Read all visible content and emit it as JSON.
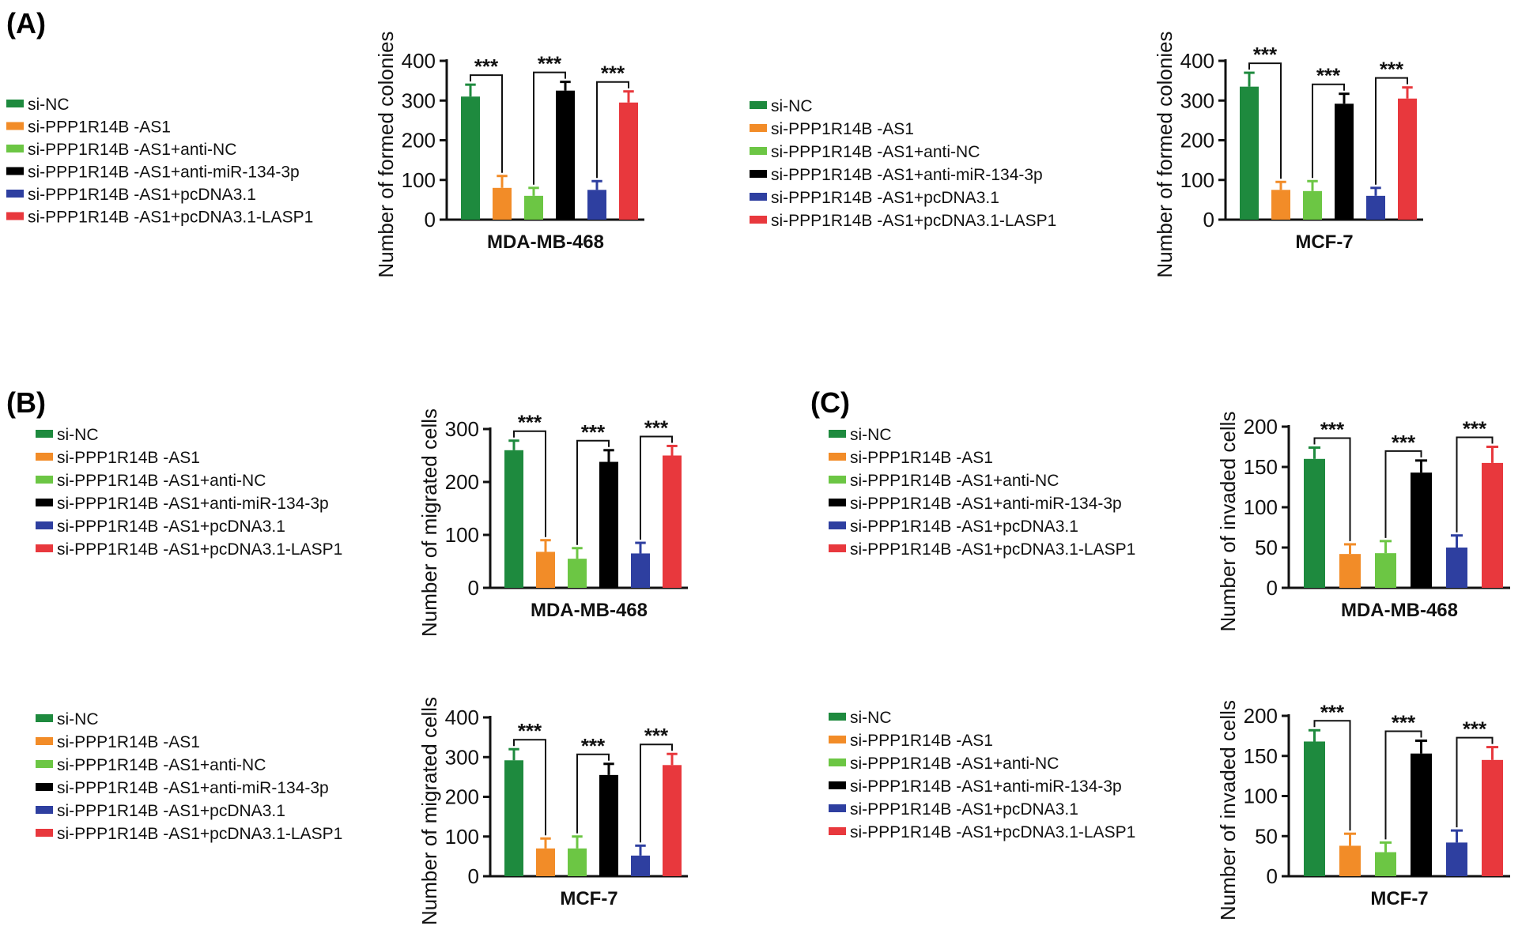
{
  "panel_labels": [
    "(A)",
    "(B)",
    "(C)"
  ],
  "groups": [
    {
      "label": "si-NC",
      "color": "#1e8a3e"
    },
    {
      "label": "si-PPP1R14B -AS1",
      "color": "#f28c28"
    },
    {
      "label": "si-PPP1R14B -AS1+anti-NC",
      "color": "#6cc644"
    },
    {
      "label": "si-PPP1R14B -AS1+anti-miR-134-3p",
      "color": "#000000"
    },
    {
      "label": "si-PPP1R14B -AS1+pcDNA3.1",
      "color": "#2e3fa0"
    },
    {
      "label": "si-PPP1R14B -AS1+pcDNA3.1-LASP1",
      "color": "#e8383d"
    }
  ],
  "chart_data": [
    {
      "type": "bar",
      "panel": "A",
      "xlabel": "MDA-MB-468",
      "ylabel": "Number of formed colonies",
      "ylim": [
        0,
        400
      ],
      "yticks": [
        0,
        100,
        200,
        300,
        400
      ],
      "significance": "***",
      "categories": [
        "si-NC",
        "si-PPP1R14B -AS1",
        "si-PPP1R14B -AS1+anti-NC",
        "si-PPP1R14B -AS1+anti-miR-134-3p",
        "si-PPP1R14B -AS1+pcDNA3.1",
        "si-PPP1R14B -AS1+pcDNA3.1-LASP1"
      ],
      "values": [
        310,
        80,
        60,
        325,
        75,
        295
      ],
      "errors": [
        30,
        30,
        20,
        22,
        22,
        28
      ]
    },
    {
      "type": "bar",
      "panel": "A",
      "xlabel": "MCF-7",
      "ylabel": "Number of formed colonies",
      "ylim": [
        0,
        400
      ],
      "yticks": [
        0,
        100,
        200,
        300,
        400
      ],
      "significance": "***",
      "categories": [
        "si-NC",
        "si-PPP1R14B -AS1",
        "si-PPP1R14B -AS1+anti-NC",
        "si-PPP1R14B -AS1+anti-miR-134-3p",
        "si-PPP1R14B -AS1+pcDNA3.1",
        "si-PPP1R14B -AS1+pcDNA3.1-LASP1"
      ],
      "values": [
        335,
        75,
        72,
        292,
        60,
        305
      ],
      "errors": [
        35,
        20,
        25,
        25,
        20,
        28
      ]
    },
    {
      "type": "bar",
      "panel": "B",
      "xlabel": "MDA-MB-468",
      "ylabel": "Number of migrated cells",
      "ylim": [
        0,
        300
      ],
      "yticks": [
        0,
        100,
        200,
        300
      ],
      "significance": "***",
      "categories": [
        "si-NC",
        "si-PPP1R14B -AS1",
        "si-PPP1R14B -AS1+anti-NC",
        "si-PPP1R14B -AS1+anti-miR-134-3p",
        "si-PPP1R14B -AS1+pcDNA3.1",
        "si-PPP1R14B -AS1+pcDNA3.1-LASP1"
      ],
      "values": [
        260,
        68,
        55,
        238,
        65,
        250
      ],
      "errors": [
        18,
        22,
        20,
        22,
        20,
        18
      ]
    },
    {
      "type": "bar",
      "panel": "B",
      "xlabel": "MCF-7",
      "ylabel": "Number of migrated cells",
      "ylim": [
        0,
        400
      ],
      "yticks": [
        0,
        100,
        200,
        300,
        400
      ],
      "significance": "***",
      "categories": [
        "si-NC",
        "si-PPP1R14B -AS1",
        "si-PPP1R14B -AS1+anti-NC",
        "si-PPP1R14B -AS1+anti-miR-134-3p",
        "si-PPP1R14B -AS1+pcDNA3.1",
        "si-PPP1R14B -AS1+pcDNA3.1-LASP1"
      ],
      "values": [
        292,
        70,
        70,
        255,
        52,
        280
      ],
      "errors": [
        28,
        25,
        30,
        28,
        25,
        28
      ]
    },
    {
      "type": "bar",
      "panel": "C",
      "xlabel": "MDA-MB-468",
      "ylabel": "Number of invaded cells",
      "ylim": [
        0,
        200
      ],
      "yticks": [
        0,
        50,
        100,
        150,
        200
      ],
      "significance": "***",
      "categories": [
        "si-NC",
        "si-PPP1R14B -AS1",
        "si-PPP1R14B -AS1+anti-NC",
        "si-PPP1R14B -AS1+anti-miR-134-3p",
        "si-PPP1R14B -AS1+pcDNA3.1",
        "si-PPP1R14B -AS1+pcDNA3.1-LASP1"
      ],
      "values": [
        160,
        42,
        43,
        143,
        50,
        155
      ],
      "errors": [
        14,
        12,
        15,
        15,
        15,
        20
      ]
    },
    {
      "type": "bar",
      "panel": "C",
      "xlabel": "MCF-7",
      "ylabel": "Number of invaded cells",
      "ylim": [
        0,
        200
      ],
      "yticks": [
        0,
        50,
        100,
        150,
        200
      ],
      "significance": "***",
      "categories": [
        "si-NC",
        "si-PPP1R14B -AS1",
        "si-PPP1R14B -AS1+anti-NC",
        "si-PPP1R14B -AS1+anti-miR-134-3p",
        "si-PPP1R14B -AS1+pcDNA3.1",
        "si-PPP1R14B -AS1+pcDNA3.1-LASP1"
      ],
      "values": [
        168,
        38,
        30,
        153,
        42,
        145
      ],
      "errors": [
        14,
        15,
        12,
        16,
        15,
        16
      ]
    }
  ]
}
